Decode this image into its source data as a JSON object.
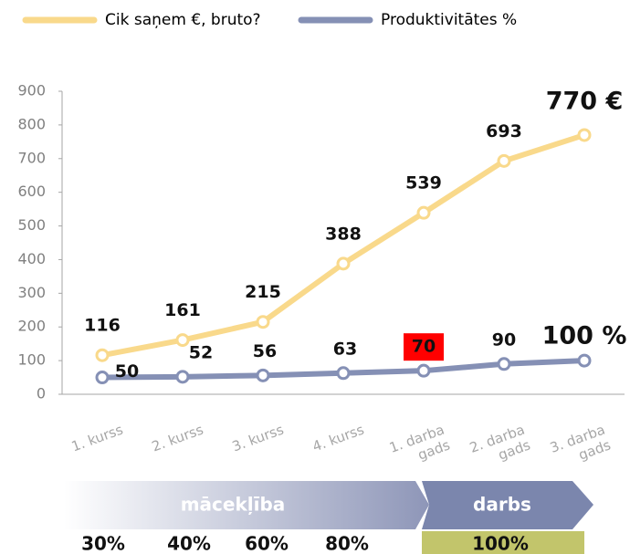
{
  "chart_data": {
    "type": "line",
    "categories": [
      "1. kurss",
      "2. kurss",
      "3. kurss",
      "4. kurss",
      "1. darba\ngads",
      "2. darba\ngads",
      "3. darba\ngads"
    ],
    "series": [
      {
        "name": "Cik saņem €, bruto?",
        "color": "#f9d98b",
        "values": [
          116,
          161,
          215,
          388,
          539,
          693,
          770
        ],
        "value_labels": [
          "116",
          "161",
          "215",
          "388",
          "539",
          "693",
          "770 €"
        ]
      },
      {
        "name": "Produktivitātes %",
        "color": "#8590b5",
        "values": [
          50,
          52,
          56,
          63,
          70,
          90,
          100
        ],
        "value_labels": [
          "50",
          "52",
          "56",
          "63",
          "70",
          "90",
          "100 %"
        ]
      }
    ],
    "ylim": [
      0,
      900
    ],
    "yticks": [
      0,
      100,
      200,
      300,
      400,
      500,
      600,
      700,
      800,
      900
    ],
    "grid": false
  },
  "stages": [
    {
      "label": "mācekļība",
      "shares": [
        "30%",
        "40%",
        "60%",
        "80%"
      ]
    },
    {
      "label": "darbs",
      "shares": [
        "100%"
      ]
    }
  ]
}
